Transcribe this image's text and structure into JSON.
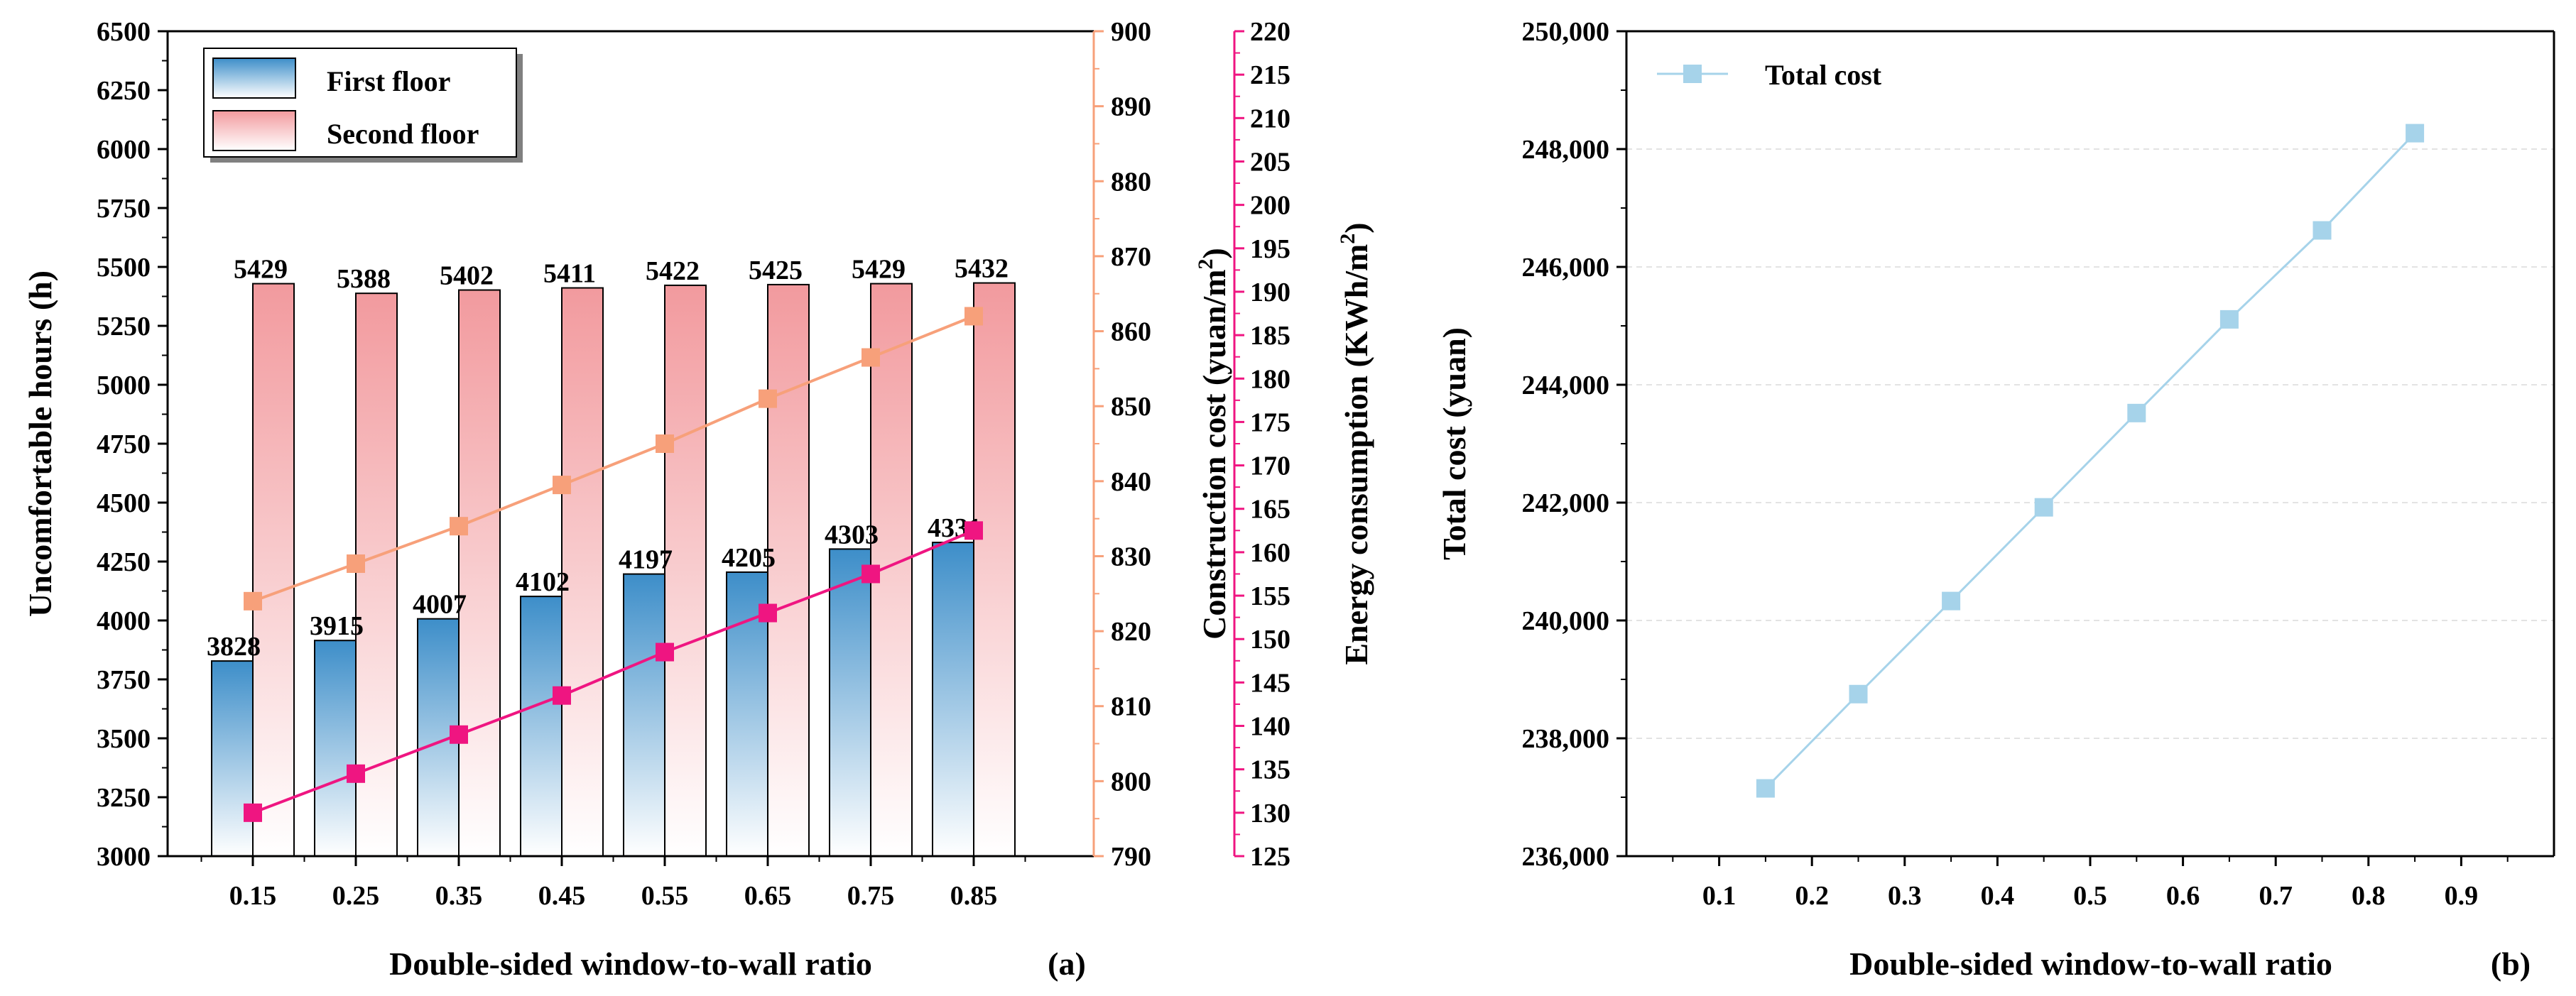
{
  "chart_data": [
    {
      "panel": "(a)",
      "type": "bar",
      "xlabel": "Double-sided window-to-wall ratio",
      "categories": [
        "0.15",
        "0.25",
        "0.35",
        "0.45",
        "0.55",
        "0.65",
        "0.75",
        "0.85"
      ],
      "series": [
        {
          "name": "First floor",
          "type": "bar",
          "axis": "left",
          "values": [
            3828,
            3915,
            4007,
            4102,
            4197,
            4205,
            4303,
            4331
          ],
          "color": "#3d8ec9"
        },
        {
          "name": "Second floor",
          "type": "bar",
          "axis": "left",
          "values": [
            5429,
            5388,
            5402,
            5411,
            5422,
            5425,
            5429,
            5432
          ],
          "color": "#f29a9e"
        },
        {
          "name": "Construction cost",
          "type": "line",
          "axis": "right1",
          "values": [
            824,
            829,
            834,
            839.5,
            845,
            851,
            856.5,
            862
          ],
          "color": "#f7a07a"
        },
        {
          "name": "Energy consumption",
          "type": "line",
          "axis": "right2",
          "values": [
            130,
            134.5,
            139,
            143.5,
            148.5,
            153,
            157.5,
            162.5
          ],
          "color": "#ef1581"
        }
      ],
      "axes": {
        "left": {
          "label": "Uncomfortable hours (h)",
          "range": [
            3000,
            6500
          ],
          "ticks": [
            "3000",
            "3250",
            "3500",
            "3750",
            "4000",
            "4250",
            "4500",
            "4750",
            "5000",
            "5250",
            "5500",
            "5750",
            "6000",
            "6250",
            "6500"
          ]
        },
        "right1": {
          "label": "Construction cost (yuan/m",
          "sup": "2",
          "close": ")",
          "range": [
            790,
            900
          ],
          "ticks": [
            "790",
            "800",
            "810",
            "820",
            "830",
            "840",
            "850",
            "860",
            "870",
            "880",
            "890",
            "900"
          ],
          "color": "#f7a07a"
        },
        "right2": {
          "label": "Energy consumption (KWh/m",
          "sup": "2",
          "close": ")",
          "range": [
            125,
            220
          ],
          "ticks": [
            "125",
            "130",
            "135",
            "140",
            "145",
            "150",
            "155",
            "160",
            "165",
            "170",
            "175",
            "180",
            "185",
            "190",
            "195",
            "200",
            "205",
            "210",
            "215",
            "220"
          ],
          "color": "#ef1581"
        }
      },
      "legend": [
        "First floor",
        "Second floor"
      ]
    },
    {
      "panel": "(b)",
      "type": "line",
      "xlabel": "Double-sided window-to-wall ratio",
      "ylabel": "Total cost (yuan)",
      "x": [
        0.15,
        0.25,
        0.35,
        0.45,
        0.55,
        0.65,
        0.75,
        0.85
      ],
      "series": [
        {
          "name": "Total cost",
          "values": [
            237150,
            238750,
            240330,
            241920,
            243520,
            245110,
            246620,
            248270
          ],
          "color": "#a6d3ea"
        }
      ],
      "xlim": [
        0,
        1.0
      ],
      "ylim": [
        236000,
        250000
      ],
      "xticks": [
        "0.1",
        "0.2",
        "0.3",
        "0.4",
        "0.5",
        "0.6",
        "0.7",
        "0.8",
        "0.9"
      ],
      "yticks": [
        "236,000",
        "238,000",
        "240,000",
        "242,000",
        "244,000",
        "246,000",
        "248,000",
        "250,000"
      ],
      "grid": true,
      "legend": [
        "Total cost"
      ]
    }
  ]
}
